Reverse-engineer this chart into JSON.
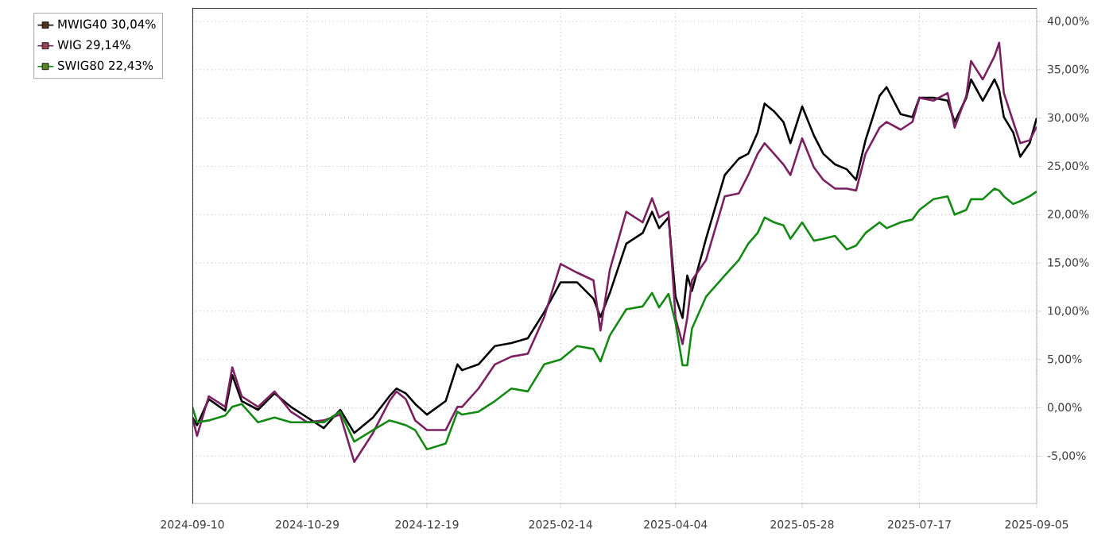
{
  "chart_data": {
    "type": "line",
    "x": [
      "2024-09-10",
      "2024-09-12",
      "2024-09-17",
      "2024-09-24",
      "2024-09-27",
      "2024-10-01",
      "2024-10-08",
      "2024-10-15",
      "2024-10-22",
      "2024-10-29",
      "2024-11-05",
      "2024-11-12",
      "2024-11-18",
      "2024-11-26",
      "2024-12-03",
      "2024-12-06",
      "2024-12-10",
      "2024-12-14",
      "2024-12-19",
      "2024-12-27",
      "2025-01-01",
      "2025-01-03",
      "2025-01-10",
      "2025-01-17",
      "2025-01-24",
      "2025-01-31",
      "2025-02-07",
      "2025-02-14",
      "2025-02-21",
      "2025-02-28",
      "2025-03-03",
      "2025-03-07",
      "2025-03-14",
      "2025-03-21",
      "2025-03-25",
      "2025-03-28",
      "2025-04-01",
      "2025-04-04",
      "2025-04-07",
      "2025-04-09",
      "2025-04-11",
      "2025-04-17",
      "2025-04-25",
      "2025-05-01",
      "2025-05-05",
      "2025-05-09",
      "2025-05-12",
      "2025-05-16",
      "2025-05-20",
      "2025-05-23",
      "2025-05-28",
      "2025-06-02",
      "2025-06-06",
      "2025-06-11",
      "2025-06-16",
      "2025-06-20",
      "2025-06-24",
      "2025-06-30",
      "2025-07-03",
      "2025-07-09",
      "2025-07-14",
      "2025-07-17",
      "2025-07-23",
      "2025-07-29",
      "2025-08-01",
      "2025-08-06",
      "2025-08-08",
      "2025-08-13",
      "2025-08-18",
      "2025-08-20",
      "2025-08-22",
      "2025-08-26",
      "2025-08-29",
      "2025-09-02",
      "2025-09-05"
    ],
    "series": [
      {
        "name": "MWIG40 30,04%",
        "color": "#000000",
        "values": [
          -1.0,
          -1.8,
          0.9,
          -0.3,
          3.4,
          0.7,
          -0.2,
          1.5,
          0.1,
          -1.0,
          -2.1,
          -0.2,
          -2.6,
          -1.0,
          1.2,
          2.0,
          1.5,
          0.4,
          -0.7,
          0.7,
          4.5,
          3.9,
          4.5,
          6.4,
          6.7,
          7.2,
          9.9,
          13.0,
          13.0,
          11.3,
          9.4,
          11.9,
          17.0,
          18.1,
          20.3,
          18.6,
          19.7,
          11.5,
          9.3,
          13.7,
          12.1,
          17.5,
          24.1,
          25.8,
          26.3,
          28.5,
          31.5,
          30.7,
          29.6,
          27.4,
          31.2,
          28.2,
          26.3,
          25.2,
          24.7,
          23.6,
          27.7,
          32.3,
          33.2,
          30.4,
          30.1,
          32.1,
          32.1,
          31.8,
          29.6,
          32.1,
          34.0,
          31.8,
          34.0,
          32.9,
          30.1,
          28.5,
          26.0,
          27.4,
          30.0
        ]
      },
      {
        "name": "WIG 29,14%",
        "color": "#7b2060",
        "values": [
          -1.0,
          -2.9,
          1.2,
          0.1,
          4.2,
          1.2,
          0.1,
          1.7,
          -0.4,
          -1.5,
          -1.3,
          -0.7,
          -5.6,
          -2.6,
          0.7,
          1.7,
          0.9,
          -1.3,
          -2.3,
          -2.3,
          0.1,
          0.1,
          2.0,
          4.5,
          5.3,
          5.6,
          9.4,
          14.9,
          14.0,
          13.2,
          8.0,
          14.3,
          20.3,
          19.2,
          21.7,
          19.7,
          20.3,
          9.3,
          6.6,
          9.3,
          13.2,
          15.3,
          21.9,
          22.2,
          24.1,
          26.3,
          27.4,
          26.3,
          25.2,
          24.1,
          27.9,
          24.9,
          23.6,
          22.7,
          22.7,
          22.5,
          26.3,
          29.0,
          29.6,
          28.8,
          29.6,
          32.1,
          31.8,
          32.6,
          29.0,
          32.3,
          35.9,
          34.0,
          36.4,
          37.8,
          32.6,
          29.6,
          27.4,
          27.7,
          29.1
        ]
      },
      {
        "name": "SWIG80 22,43%",
        "color": "#138a13",
        "values": [
          0.1,
          -1.5,
          -1.3,
          -0.8,
          0.1,
          0.4,
          -1.5,
          -1.0,
          -1.5,
          -1.5,
          -1.5,
          -0.4,
          -3.5,
          -2.3,
          -1.3,
          -1.5,
          -1.8,
          -2.3,
          -4.3,
          -3.7,
          -0.4,
          -0.7,
          -0.4,
          0.7,
          2.0,
          1.7,
          4.5,
          5.0,
          6.4,
          6.1,
          4.8,
          7.5,
          10.2,
          10.5,
          11.9,
          10.4,
          11.8,
          8.8,
          4.4,
          4.4,
          8.2,
          11.5,
          13.7,
          15.3,
          17.0,
          18.1,
          19.7,
          19.2,
          18.9,
          17.5,
          19.2,
          17.3,
          17.5,
          17.8,
          16.4,
          16.8,
          18.1,
          19.2,
          18.6,
          19.2,
          19.5,
          20.5,
          21.6,
          21.9,
          20.0,
          20.5,
          21.6,
          21.6,
          22.7,
          22.5,
          21.9,
          21.1,
          21.4,
          21.9,
          22.4
        ]
      }
    ],
    "xlim": [
      "2024-09-10",
      "2025-09-05"
    ],
    "xticks": [
      {
        "value": "2024-09-10",
        "label": "2024-09-10"
      },
      {
        "value": "2024-10-29",
        "label": "2024-10-29"
      },
      {
        "value": "2024-12-19",
        "label": "2024-12-19"
      },
      {
        "value": "2025-02-14",
        "label": "2025-02-14"
      },
      {
        "value": "2025-04-04",
        "label": "2025-04-04"
      },
      {
        "value": "2025-05-28",
        "label": "2025-05-28"
      },
      {
        "value": "2025-07-17",
        "label": "2025-07-17"
      },
      {
        "value": "2025-09-05",
        "label": "2025-09-05"
      }
    ],
    "ylim": [
      -9.9,
      41.4
    ],
    "yticks": [
      {
        "value": -5,
        "label": "-5,00%"
      },
      {
        "value": 0,
        "label": "0,00%"
      },
      {
        "value": 5,
        "label": "5,00%"
      },
      {
        "value": 10,
        "label": "10,00%"
      },
      {
        "value": 15,
        "label": "15,00%"
      },
      {
        "value": 20,
        "label": "20,00%"
      },
      {
        "value": 25,
        "label": "25,00%"
      },
      {
        "value": 30,
        "label": "30,00%"
      },
      {
        "value": 35,
        "label": "35,00%"
      },
      {
        "value": 40,
        "label": "40,00%"
      }
    ],
    "grid": true,
    "legend": "top left"
  }
}
